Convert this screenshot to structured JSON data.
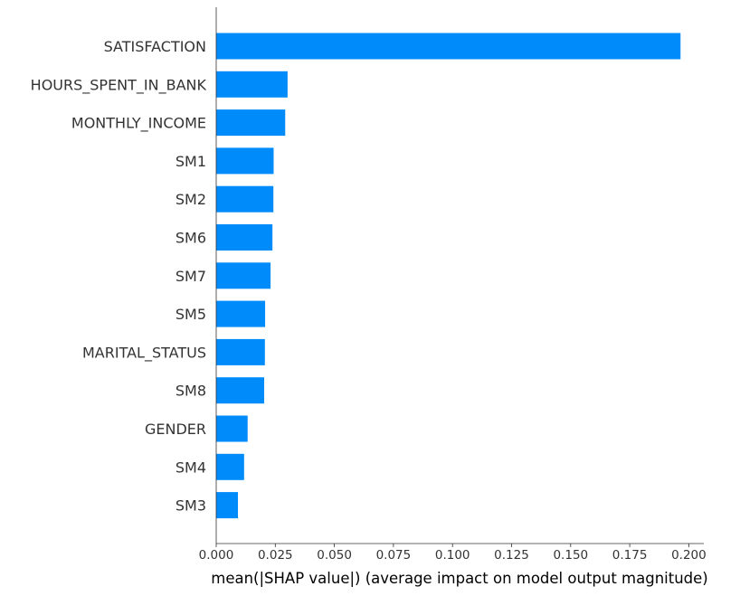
{
  "chart_data": {
    "type": "bar",
    "orientation": "horizontal",
    "categories": [
      "SATISFACTION",
      "HOURS_SPENT_IN_BANK",
      "MONTHLY_INCOME",
      "SM1",
      "SM2",
      "SM6",
      "SM7",
      "SM5",
      "MARITAL_STATUS",
      "SM8",
      "GENDER",
      "SM4",
      "SM3"
    ],
    "values": [
      0.1965,
      0.0302,
      0.0292,
      0.0243,
      0.0242,
      0.0238,
      0.023,
      0.0207,
      0.0206,
      0.0203,
      0.0133,
      0.0118,
      0.0092
    ],
    "xlabel": "mean(|SHAP value|) (average impact on model output magnitude)",
    "ylabel": "",
    "xlim": [
      0,
      0.2065
    ],
    "xticks": [
      "0.000",
      "0.025",
      "0.050",
      "0.075",
      "0.100",
      "0.125",
      "0.150",
      "0.175",
      "0.200"
    ],
    "xtick_values": [
      0,
      0.025,
      0.05,
      0.075,
      0.1,
      0.125,
      0.15,
      0.175,
      0.2
    ],
    "bar_color": "#008bfb",
    "grid": false
  }
}
